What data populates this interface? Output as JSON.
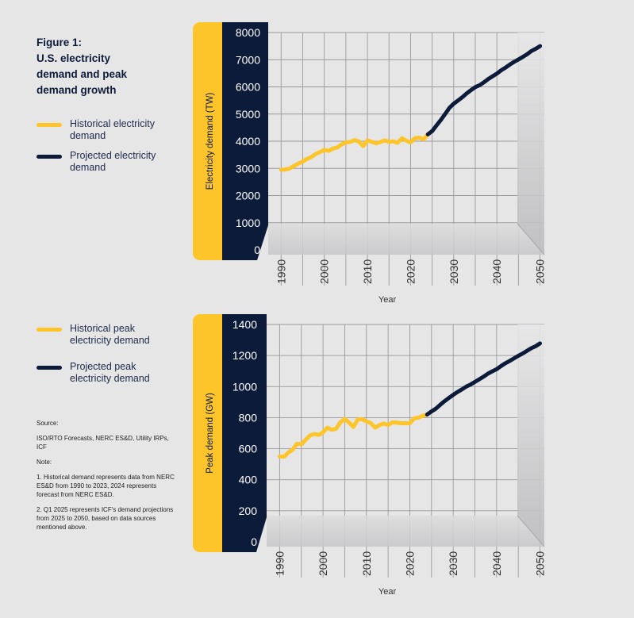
{
  "figure": {
    "title_lines": [
      "Figure 1:",
      "U.S. electricity",
      "demand and peak",
      "demand growth"
    ]
  },
  "colors": {
    "historical": "#fdc52a",
    "projected": "#0d1b3a",
    "background": "#e6e6e7"
  },
  "legend_top": [
    {
      "label_lines": [
        "Historical electricity",
        "demand"
      ],
      "color": "#fdc52a"
    },
    {
      "label_lines": [
        "Projected electricity",
        "demand"
      ],
      "color": "#0d1b3a"
    }
  ],
  "legend_bottom": [
    {
      "label_lines": [
        "Historical peak",
        "electricity demand"
      ],
      "color": "#fdc52a"
    },
    {
      "label_lines": [
        "Projected peak",
        "electricity demand"
      ],
      "color": "#0d1b3a"
    }
  ],
  "notes": {
    "source_heading": "Source:",
    "source_text": "ISO/RTO Forecasts, NERC ES&D, Utility IRPs, ICF",
    "note_heading": "Note:",
    "note_1": "1. Historical demand represents data from NERC ES&D from 1990 to 2023, 2024 represents forecast from NERC ES&D.",
    "note_2": "2. Q1 2025 represents ICF's demand projections from 2025 to 2050, based on data sources mentioned above."
  },
  "chart_data": [
    {
      "type": "line",
      "ylabel": "Electricity demand (TW)",
      "xlabel": "Year",
      "ylim": [
        0,
        8000
      ],
      "yticks": [
        0,
        1000,
        2000,
        3000,
        4000,
        5000,
        6000,
        7000,
        8000
      ],
      "xlim": [
        1987,
        2051
      ],
      "xticks": [
        1990,
        2000,
        2010,
        2020,
        2030,
        2040,
        2050
      ],
      "grid": true,
      "series": [
        {
          "x": [
            1990,
            1991,
            1992,
            1993,
            1994,
            1995,
            1996,
            1997,
            1998,
            1999,
            2000,
            2001,
            2002,
            2003,
            2004,
            2005,
            2006,
            2007,
            2008,
            2009,
            2010,
            2011,
            2012,
            2013,
            2014,
            2015,
            2016,
            2017,
            2018,
            2019,
            2020,
            2021,
            2022,
            2023,
            2024
          ],
          "values": [
            2950,
            2960,
            3000,
            3090,
            3180,
            3250,
            3350,
            3420,
            3530,
            3600,
            3680,
            3640,
            3730,
            3770,
            3880,
            3960,
            3970,
            4040,
            3990,
            3820,
            4030,
            3980,
            3920,
            3970,
            4030,
            3980,
            3990,
            3940,
            4110,
            4020,
            3960,
            4110,
            4130,
            4070,
            4250
          ]
        },
        {
          "x": [
            2024,
            2025,
            2026,
            2027,
            2028,
            2029,
            2030,
            2031,
            2032,
            2033,
            2034,
            2035,
            2036,
            2037,
            2038,
            2039,
            2040,
            2041,
            2042,
            2043,
            2044,
            2045,
            2046,
            2047,
            2048,
            2049,
            2050
          ],
          "values": [
            4250,
            4370,
            4580,
            4780,
            5000,
            5230,
            5380,
            5500,
            5620,
            5760,
            5880,
            5990,
            6060,
            6170,
            6290,
            6390,
            6490,
            6610,
            6710,
            6820,
            6920,
            7010,
            7100,
            7200,
            7320,
            7400,
            7500
          ]
        }
      ]
    },
    {
      "type": "line",
      "ylabel": "Peak demand (GW)",
      "xlabel": "Year",
      "ylim": [
        0,
        1400
      ],
      "yticks": [
        0,
        200,
        400,
        600,
        800,
        1000,
        1200,
        1400
      ],
      "xlim": [
        1987,
        2051
      ],
      "xticks": [
        1990,
        2000,
        2010,
        2020,
        2030,
        2040,
        2050
      ],
      "grid": true,
      "series": [
        {
          "x": [
            1990,
            1991,
            1992,
            1993,
            1994,
            1995,
            1996,
            1997,
            1998,
            1999,
            2000,
            2001,
            2002,
            2003,
            2004,
            2005,
            2006,
            2007,
            2008,
            2009,
            2010,
            2011,
            2012,
            2013,
            2014,
            2015,
            2016,
            2017,
            2018,
            2019,
            2020,
            2021,
            2022,
            2023,
            2024
          ],
          "values": [
            550,
            548,
            575,
            593,
            632,
            628,
            657,
            685,
            695,
            688,
            705,
            735,
            722,
            728,
            770,
            792,
            768,
            740,
            788,
            790,
            776,
            765,
            735,
            752,
            762,
            752,
            770,
            768,
            764,
            764,
            764,
            795,
            800,
            812,
            820
          ],
          "color": "#fdc52a"
        },
        {
          "x": [
            2024,
            2025,
            2026,
            2027,
            2028,
            2029,
            2030,
            2031,
            2032,
            2033,
            2034,
            2035,
            2036,
            2037,
            2038,
            2039,
            2040,
            2041,
            2042,
            2043,
            2044,
            2045,
            2046,
            2047,
            2048,
            2049,
            2050
          ],
          "values": [
            820,
            840,
            858,
            883,
            906,
            927,
            947,
            965,
            982,
            1000,
            1013,
            1030,
            1047,
            1064,
            1083,
            1098,
            1112,
            1132,
            1150,
            1165,
            1182,
            1198,
            1213,
            1230,
            1247,
            1260,
            1278
          ]
        }
      ]
    }
  ],
  "axis_text": {
    "top_ylabel": "Electricity demand (TW)",
    "bottom_ylabel": "Peak demand (GW)",
    "top_xlabel": "Year",
    "bottom_xlabel": "Year"
  }
}
